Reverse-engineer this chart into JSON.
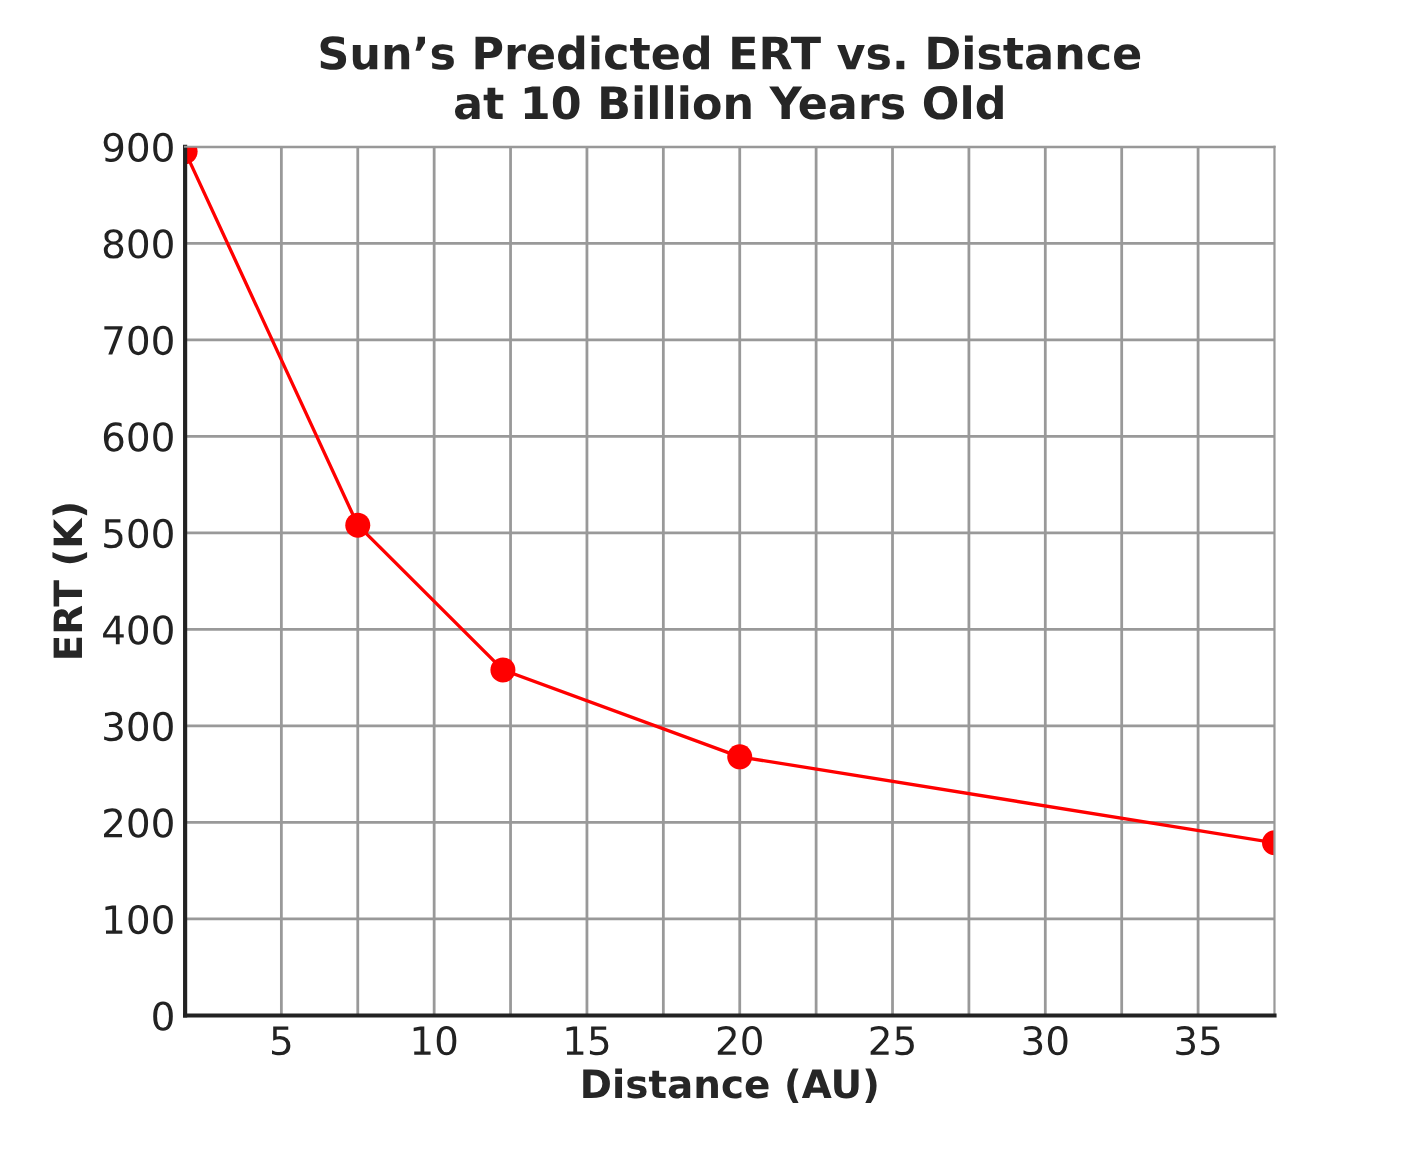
{
  "chart_data": {
    "type": "line",
    "title": "Sun’s Predicted ERT vs. Distance\nat 10 Billion Years Old",
    "xlabel": "Distance (AU)",
    "ylabel": "ERT (K)",
    "x": [
      1.85,
      7.5,
      12.25,
      20,
      37.5
    ],
    "series": [
      {
        "color": "#ff0000",
        "values": [
          895,
          508,
          358,
          268,
          179
        ]
      }
    ],
    "marker": "circle",
    "line_style": "solid",
    "grid": true,
    "xlim": [
      1.85,
      37.5
    ],
    "xticks": [
      5,
      {
        "value": 7.5,
        "label": null
      },
      10,
      {
        "value": 12.5,
        "label": null
      },
      15,
      {
        "value": 17.5,
        "label": null
      },
      20,
      {
        "value": 22.5,
        "label": null
      },
      25,
      {
        "value": 27.5,
        "label": null
      },
      30,
      {
        "value": 32.5,
        "label": null
      },
      35
    ],
    "ylim": [
      0,
      900
    ],
    "yticks": [
      0,
      100,
      200,
      300,
      400,
      500,
      600,
      700,
      800,
      900
    ]
  }
}
